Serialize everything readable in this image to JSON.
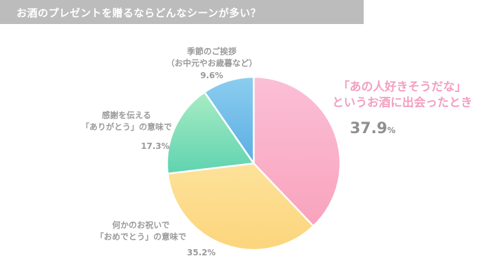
{
  "title": "お酒のプレゼントを贈るならどんなシーンが多い？",
  "chart_data": {
    "type": "pie",
    "title": "お酒のプレゼントを贈るならどんなシーンが多い？",
    "start_angle": "12 o'clock, clockwise",
    "slices": [
      {
        "label": "「あの人好きそうだな」というお酒に出会ったとき",
        "value": 37.9,
        "color_top": "#fbbfd6",
        "color_bottom": "#f9a3bd"
      },
      {
        "label": "何かのお祝いで「おめでとう」の意味で",
        "value": 35.2,
        "color_top": "#fde29a",
        "color_bottom": "#fcd57c"
      },
      {
        "label": "感謝を伝える「ありがとう」の意味で",
        "value": 17.3,
        "color_top": "#a8ecc4",
        "color_bottom": "#5fd3b0"
      },
      {
        "label": "季節のご挨拶（お中元やお歳暮など）",
        "value": 9.6,
        "color_top": "#8ccdef",
        "color_bottom": "#5aaee3"
      }
    ],
    "unit": "%"
  },
  "labels": {
    "main": {
      "line1": "「あの人好きそうだな」",
      "line2": "というお酒に出会ったとき",
      "value": "37.9",
      "unit": "%"
    },
    "celebration": {
      "line1": "何かのお祝いで",
      "line2": "「おめでとう」の意味で",
      "value": "35.2%"
    },
    "thanks": {
      "line1": "感謝を伝える",
      "line2": "「ありがとう」の意味で",
      "value": "17.3%"
    },
    "seasonal": {
      "line1": "季節のご挨拶",
      "line2": "（お中元やお歳暮など）",
      "value": "9.6%"
    }
  }
}
